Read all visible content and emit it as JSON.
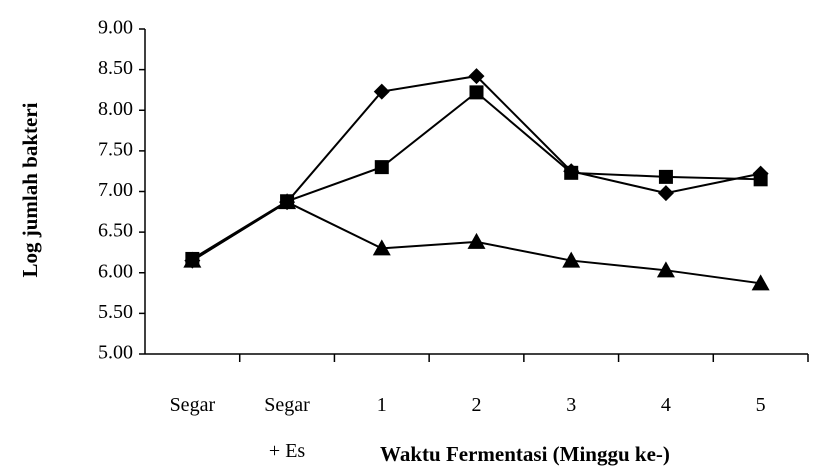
{
  "chart_data": {
    "type": "line",
    "y_label": "Log jumlah bakteri",
    "x_label": "Waktu Fermentasi (Minggu ke-)",
    "categories": [
      "Segar",
      "Segar\n+ Es",
      "1",
      "2",
      "3",
      "4",
      "5"
    ],
    "series": [
      {
        "color": "#000000",
        "marker": "diamond",
        "values": [
          6.15,
          6.87,
          8.23,
          8.42,
          7.25,
          6.98,
          7.22
        ]
      },
      {
        "color": "#000000",
        "marker": "square",
        "values": [
          6.17,
          6.88,
          7.3,
          8.22,
          7.23,
          7.18,
          7.15
        ]
      },
      {
        "color": "#000000",
        "marker": "triangle",
        "values": [
          6.15,
          6.87,
          6.3,
          6.38,
          6.15,
          6.03,
          5.87
        ]
      }
    ],
    "ylim": [
      5,
      9
    ],
    "yticks": [
      {
        "value": 5,
        "label": "5.00"
      },
      {
        "value": 5.5,
        "label": "5.50"
      },
      {
        "value": 6,
        "label": "6.00"
      },
      {
        "value": 6.5,
        "label": "6.50"
      },
      {
        "value": 7,
        "label": "7.00"
      },
      {
        "value": 7.5,
        "label": "7.50"
      },
      {
        "value": 8,
        "label": "8.00"
      },
      {
        "value": 8.5,
        "label": "8.50"
      },
      {
        "value": 9,
        "label": "9.00"
      }
    ],
    "grid": false
  }
}
